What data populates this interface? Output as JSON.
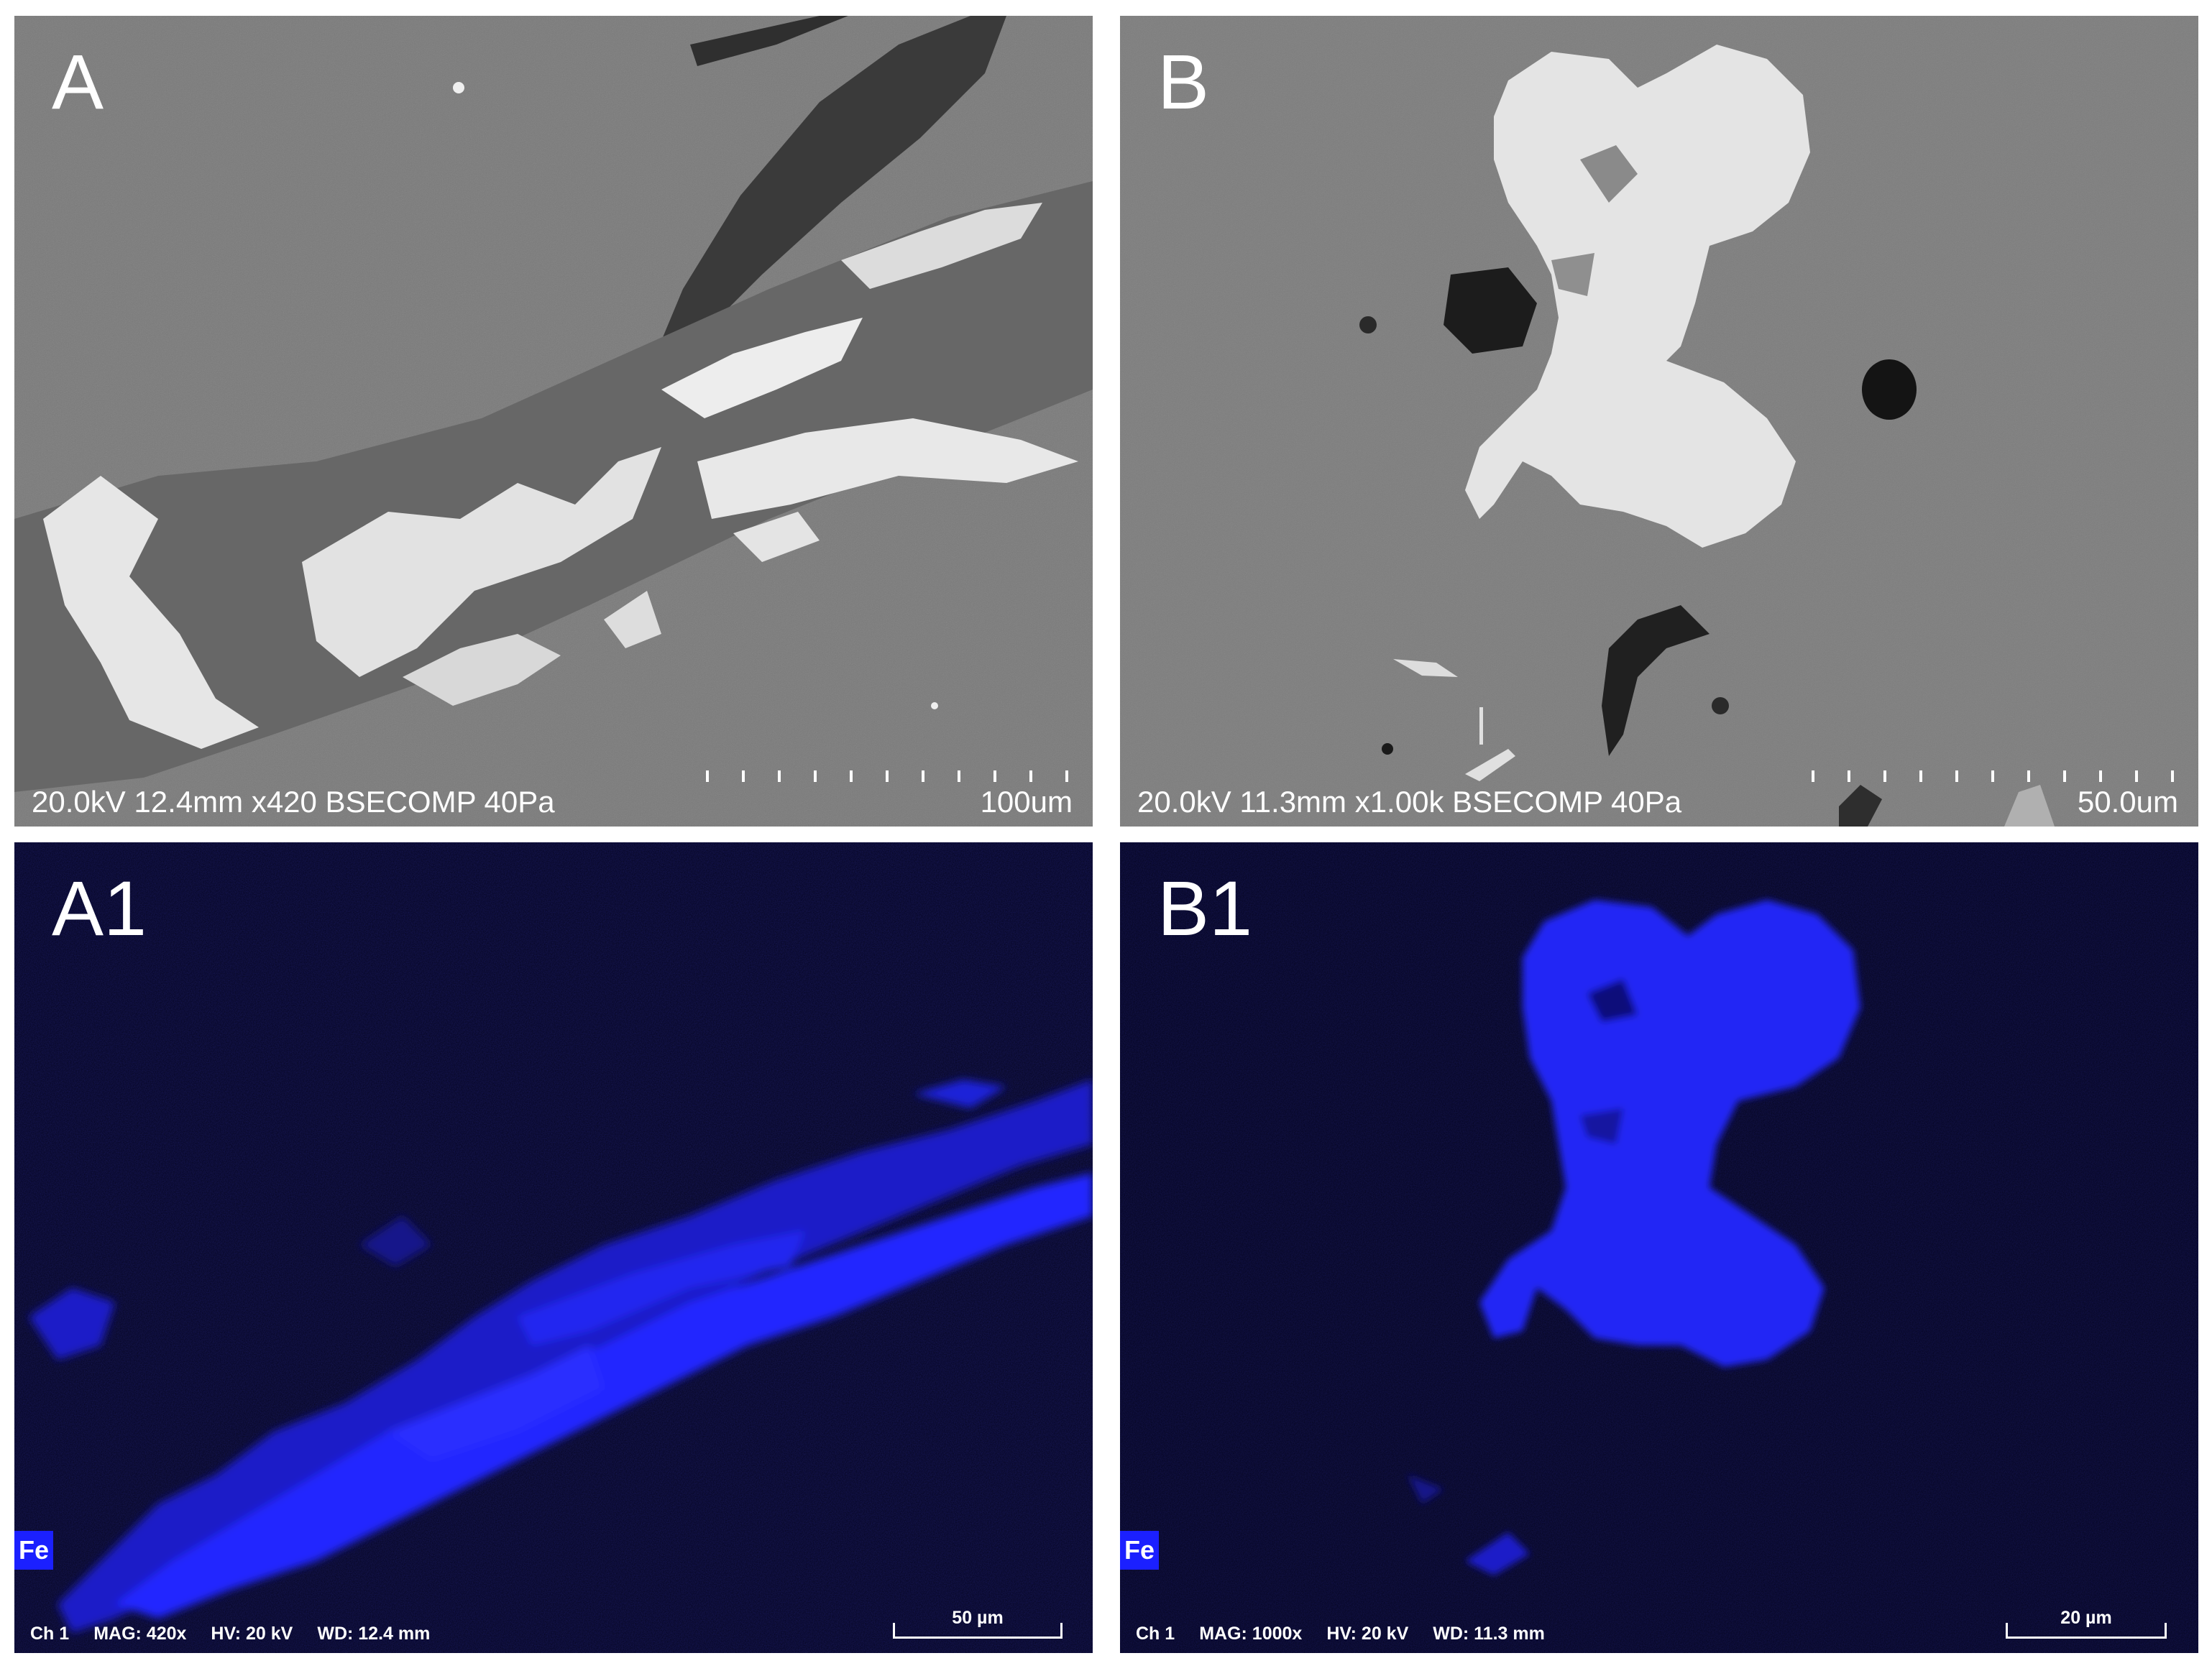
{
  "panels": {
    "A": {
      "label": "A",
      "info": "20.0kV 12.4mm x420 BSECOMP 40Pa",
      "scale": "100um"
    },
    "B": {
      "label": "B",
      "info": "20.0kV 11.3mm x1.00k BSECOMP 40Pa",
      "scale": "50.0um"
    },
    "A1": {
      "label": "A1",
      "element": "Fe",
      "ch": "Ch 1",
      "mag": "MAG: 420x",
      "hv": "HV: 20 kV",
      "wd": "WD: 12.4 mm",
      "scale": "50 µm"
    },
    "B1": {
      "label": "B1",
      "element": "Fe",
      "ch": "Ch 1",
      "mag": "MAG: 1000x",
      "hv": "HV: 20 kV",
      "wd": "WD: 11.3 mm",
      "scale": "20 µm"
    }
  },
  "colors": {
    "sem_background": "#7a7a7a",
    "edx_background": "#03031a",
    "fe_map": "#1b20ff"
  }
}
